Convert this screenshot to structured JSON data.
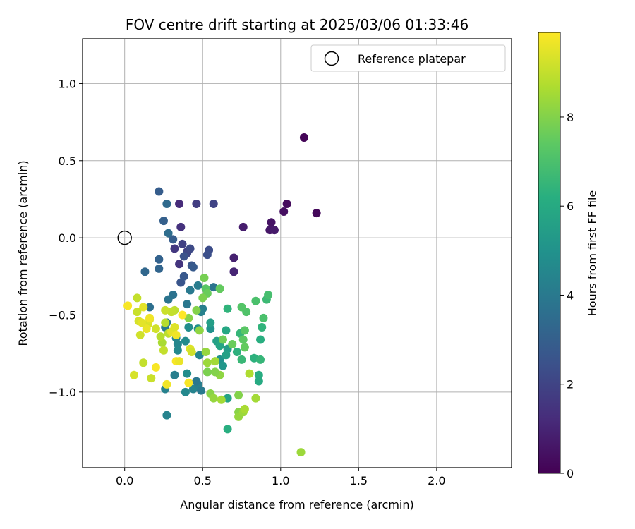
{
  "chart_data": {
    "type": "scatter",
    "title": "FOV centre drift starting at 2025/03/06 01:33:46",
    "xlabel": "Angular distance from reference (arcmin)",
    "ylabel": "Rotation from reference (arcmin)",
    "xlim": [
      -0.27,
      2.48
    ],
    "ylim": [
      -1.49,
      1.29
    ],
    "xticks": [
      0.0,
      0.5,
      1.0,
      1.5,
      2.0
    ],
    "xtick_labels": [
      "0.0",
      "0.5",
      "1.0",
      "1.5",
      "2.0"
    ],
    "yticks": [
      1.0,
      0.5,
      0.0,
      -0.5,
      -1.0
    ],
    "ytick_labels": [
      "1.0",
      "0.5",
      "0.0",
      "−0.5",
      "−1.0"
    ],
    "grid": true,
    "legend": {
      "position": "top-right",
      "entries": [
        "Reference platepar"
      ]
    },
    "colorbar": {
      "label": "Hours from first FF file",
      "range": [
        0,
        9.9
      ],
      "ticks": [
        0,
        2,
        4,
        6,
        8
      ],
      "tick_labels": [
        "0",
        "2",
        "4",
        "6",
        "8"
      ],
      "colormap": "viridis"
    },
    "reference_point": {
      "x": 0.0,
      "y": 0.0
    },
    "series": [
      {
        "points": [
          [
            1.15,
            0.65,
            0.1
          ],
          [
            1.23,
            0.16,
            0.2
          ],
          [
            1.04,
            0.22,
            0.3
          ],
          [
            1.02,
            0.17,
            0.4
          ],
          [
            0.94,
            0.1,
            0.5
          ],
          [
            0.93,
            0.05,
            0.6
          ],
          [
            0.96,
            0.05,
            0.7
          ],
          [
            0.76,
            0.07,
            0.8
          ],
          [
            0.7,
            -0.13,
            0.9
          ],
          [
            0.7,
            -0.22,
            1.0
          ],
          [
            0.35,
            0.22,
            1.2
          ],
          [
            0.36,
            0.07,
            1.4
          ],
          [
            0.35,
            -0.17,
            1.5
          ],
          [
            0.4,
            -0.09,
            1.7
          ],
          [
            0.46,
            0.22,
            1.8
          ],
          [
            0.57,
            0.22,
            2.0
          ],
          [
            0.4,
            -0.1,
            2.1
          ],
          [
            0.42,
            -0.07,
            2.2
          ],
          [
            0.54,
            -0.08,
            2.3
          ],
          [
            0.53,
            -0.11,
            2.4
          ],
          [
            0.32,
            -0.07,
            1.6
          ],
          [
            0.37,
            -0.04,
            1.9
          ],
          [
            0.38,
            -0.12,
            2.5
          ],
          [
            0.43,
            -0.18,
            2.6
          ],
          [
            0.44,
            -0.19,
            2.8
          ],
          [
            0.36,
            -0.29,
            2.6
          ],
          [
            0.38,
            -0.25,
            2.7
          ],
          [
            0.22,
            0.3,
            2.9
          ],
          [
            0.25,
            0.11,
            3.0
          ],
          [
            0.31,
            -0.01,
            2.9
          ],
          [
            0.22,
            -0.14,
            3.1
          ],
          [
            0.22,
            -0.2,
            3.2
          ],
          [
            0.13,
            -0.22,
            3.3
          ],
          [
            0.27,
            0.22,
            3.4
          ],
          [
            0.28,
            0.03,
            3.5
          ],
          [
            0.16,
            -0.45,
            3.6
          ],
          [
            0.31,
            -0.37,
            3.7
          ],
          [
            0.28,
            -0.4,
            3.8
          ],
          [
            0.4,
            -0.43,
            3.9
          ],
          [
            0.42,
            -0.34,
            4.0
          ],
          [
            0.47,
            -0.31,
            4.1
          ],
          [
            0.57,
            -0.32,
            3.8
          ],
          [
            0.5,
            -0.46,
            4.2
          ],
          [
            0.49,
            -0.48,
            4.3
          ],
          [
            0.27,
            -0.55,
            4.0
          ],
          [
            0.26,
            -0.58,
            4.1
          ],
          [
            0.33,
            -0.65,
            4.4
          ],
          [
            0.34,
            -0.69,
            4.5
          ],
          [
            0.34,
            -0.73,
            4.6
          ],
          [
            0.39,
            -0.67,
            4.7
          ],
          [
            0.41,
            -0.58,
            4.8
          ],
          [
            0.47,
            -0.59,
            4.9
          ],
          [
            0.55,
            -0.59,
            5.0
          ],
          [
            0.48,
            -0.76,
            4.5
          ],
          [
            0.32,
            -0.89,
            4.2
          ],
          [
            0.26,
            -0.98,
            4.3
          ],
          [
            0.39,
            -1.0,
            4.6
          ],
          [
            0.44,
            -0.98,
            4.4
          ],
          [
            0.47,
            -0.95,
            4.2
          ],
          [
            0.46,
            -0.93,
            3.9
          ],
          [
            0.49,
            -0.99,
            4.0
          ],
          [
            0.27,
            -1.15,
            4.4
          ],
          [
            0.4,
            -0.88,
            4.8
          ],
          [
            0.61,
            -0.79,
            5.0
          ],
          [
            0.63,
            -0.83,
            5.2
          ],
          [
            0.55,
            -0.55,
            5.5
          ],
          [
            0.59,
            -0.67,
            5.6
          ],
          [
            0.61,
            -0.7,
            5.8
          ],
          [
            0.66,
            -0.72,
            5.4
          ],
          [
            0.65,
            -0.76,
            5.6
          ],
          [
            0.65,
            -0.6,
            5.9
          ],
          [
            0.66,
            -1.04,
            5.7
          ],
          [
            0.66,
            -1.24,
            6.2
          ],
          [
            0.66,
            -0.46,
            6.4
          ],
          [
            0.74,
            -0.62,
            6.5
          ],
          [
            0.72,
            -0.74,
            6.3
          ],
          [
            0.75,
            -0.79,
            6.6
          ],
          [
            0.83,
            -0.78,
            6.3
          ],
          [
            0.86,
            -0.89,
            6.1
          ],
          [
            0.86,
            -0.93,
            6.0
          ],
          [
            0.87,
            -0.66,
            6.2
          ],
          [
            0.88,
            -0.58,
            6.4
          ],
          [
            0.87,
            -0.79,
            6.5
          ],
          [
            0.91,
            -0.4,
            6.7
          ],
          [
            0.92,
            -0.37,
            6.9
          ],
          [
            0.89,
            -0.52,
            7.0
          ],
          [
            0.84,
            -0.41,
            7.0
          ],
          [
            0.78,
            -0.48,
            7.1
          ],
          [
            0.75,
            -0.45,
            7.2
          ],
          [
            0.77,
            -0.6,
            7.3
          ],
          [
            0.76,
            -0.66,
            7.4
          ],
          [
            0.77,
            -0.71,
            7.5
          ],
          [
            0.69,
            -0.69,
            7.6
          ],
          [
            0.63,
            -0.66,
            7.7
          ],
          [
            0.61,
            -0.33,
            7.5
          ],
          [
            0.52,
            -0.33,
            7.3
          ],
          [
            0.51,
            -0.26,
            7.8
          ],
          [
            0.53,
            -0.36,
            7.6
          ],
          [
            0.5,
            -0.39,
            7.9
          ],
          [
            0.46,
            -0.47,
            8.0
          ],
          [
            0.41,
            -0.52,
            8.1
          ],
          [
            0.48,
            -0.6,
            8.2
          ],
          [
            0.52,
            -0.74,
            8.3
          ],
          [
            0.53,
            -0.81,
            8.4
          ],
          [
            0.58,
            -0.8,
            8.5
          ],
          [
            0.61,
            -0.89,
            8.2
          ],
          [
            0.58,
            -0.87,
            8.0
          ],
          [
            0.53,
            -0.87,
            7.9
          ],
          [
            0.55,
            -1.01,
            8.1
          ],
          [
            0.57,
            -1.04,
            8.3
          ],
          [
            0.62,
            -1.05,
            8.5
          ],
          [
            0.73,
            -1.02,
            8.0
          ],
          [
            0.73,
            -1.13,
            8.1
          ],
          [
            0.73,
            -1.16,
            8.3
          ],
          [
            0.76,
            -1.13,
            8.4
          ],
          [
            0.77,
            -1.11,
            8.6
          ],
          [
            0.84,
            -1.04,
            8.5
          ],
          [
            0.8,
            -0.88,
            8.7
          ],
          [
            1.13,
            -1.39,
            8.4
          ],
          [
            0.32,
            -0.47,
            8.9
          ],
          [
            0.3,
            -0.48,
            9.0
          ],
          [
            0.26,
            -0.47,
            9.1
          ],
          [
            0.26,
            -0.55,
            8.8
          ],
          [
            0.28,
            -0.62,
            8.9
          ],
          [
            0.24,
            -0.68,
            8.6
          ],
          [
            0.23,
            -0.64,
            8.8
          ],
          [
            0.25,
            -0.73,
            9.0
          ],
          [
            0.2,
            -0.59,
            9.2
          ],
          [
            0.15,
            -0.56,
            9.3
          ],
          [
            0.16,
            -0.53,
            9.4
          ],
          [
            0.12,
            -0.45,
            9.5
          ],
          [
            0.08,
            -0.39,
            9.0
          ],
          [
            0.08,
            -0.48,
            9.1
          ],
          [
            0.09,
            -0.54,
            9.3
          ],
          [
            0.1,
            -0.63,
            9.2
          ],
          [
            0.14,
            -0.59,
            9.6
          ],
          [
            0.16,
            -0.52,
            9.7
          ],
          [
            0.11,
            -0.55,
            9.5
          ],
          [
            0.12,
            -0.81,
            9.0
          ],
          [
            0.17,
            -0.91,
            9.1
          ],
          [
            0.06,
            -0.89,
            9.3
          ],
          [
            0.2,
            -0.84,
            9.8
          ],
          [
            0.27,
            -0.95,
            9.7
          ],
          [
            0.33,
            -0.8,
            9.8
          ],
          [
            0.35,
            -0.8,
            9.6
          ],
          [
            0.3,
            -0.61,
            9.5
          ],
          [
            0.32,
            -0.58,
            9.4
          ],
          [
            0.33,
            -0.63,
            9.7
          ],
          [
            0.37,
            -0.5,
            9.9
          ],
          [
            0.41,
            -0.94,
            9.8
          ],
          [
            0.42,
            -0.72,
            9.4
          ],
          [
            0.43,
            -0.74,
            9.2
          ],
          [
            0.02,
            -0.44,
            9.8
          ]
        ]
      }
    ]
  }
}
